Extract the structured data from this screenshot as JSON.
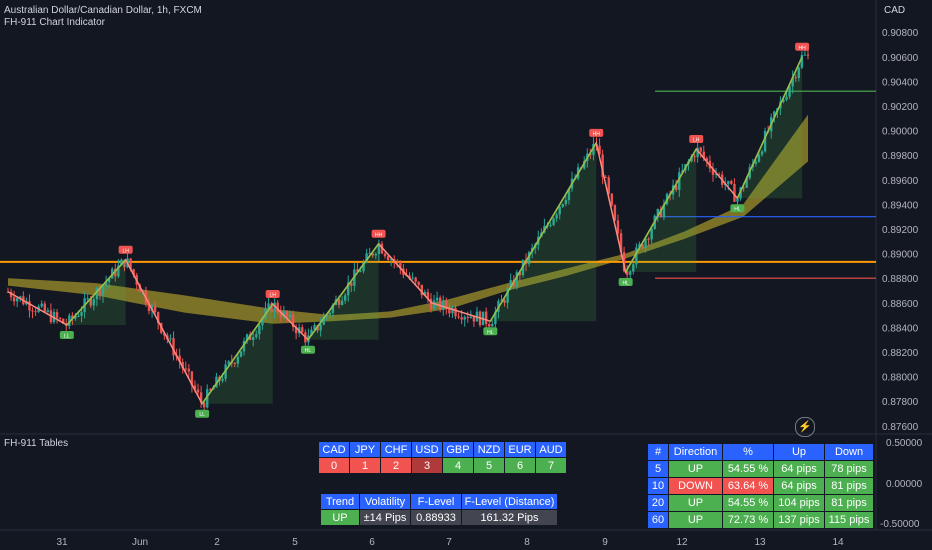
{
  "header": {
    "title": "Australian Dollar/Canadian Dollar, 1h, FXCM",
    "indicator": "FH-911 Chart Indicator",
    "currency": "CAD",
    "pane2": "FH-911 Tables"
  },
  "chart_data": {
    "type": "line",
    "price_axis": {
      "ticks": [
        "0.90800",
        "0.90600",
        "0.90400",
        "0.90200",
        "0.90000",
        "0.89800",
        "0.89600",
        "0.89400",
        "0.89200",
        "0.89000",
        "0.88800",
        "0.88600",
        "0.88400",
        "0.88200",
        "0.88000",
        "0.87800",
        "0.87600"
      ],
      "range": [
        0.8755,
        0.9098
      ]
    },
    "osc_axis": {
      "ticks": [
        "0.50000",
        "0.00000",
        "-0.50000"
      ]
    },
    "x_ticks": [
      "31",
      "Jun",
      "2",
      "5",
      "6",
      "7",
      "8",
      "9",
      "12",
      "13",
      "14"
    ],
    "zigzag": [
      {
        "t": 0.0,
        "p": 0.8869,
        "label": ""
      },
      {
        "t": 1.0,
        "p": 0.8842,
        "label": "LL"
      },
      {
        "t": 2.0,
        "p": 0.8895,
        "label": "LH"
      },
      {
        "t": 3.3,
        "p": 0.8778,
        "label": "LL"
      },
      {
        "t": 4.5,
        "p": 0.8859,
        "label": "LH"
      },
      {
        "t": 5.1,
        "p": 0.883,
        "label": "HL"
      },
      {
        "t": 6.3,
        "p": 0.8908,
        "label": "HH"
      },
      {
        "t": 7.2,
        "p": 0.886,
        "label": ""
      },
      {
        "t": 8.2,
        "p": 0.8845,
        "label": "HL"
      },
      {
        "t": 10.0,
        "p": 0.899,
        "label": "HH"
      },
      {
        "t": 10.5,
        "p": 0.8885,
        "label": "HL"
      },
      {
        "t": 11.7,
        "p": 0.8985,
        "label": "LH"
      },
      {
        "t": 12.4,
        "p": 0.8945,
        "label": "HL"
      },
      {
        "t": 13.5,
        "p": 0.906,
        "label": "HH"
      }
    ],
    "levels": [
      {
        "name": "resistance",
        "value": 0.9032,
        "color": "#4caf50"
      },
      {
        "name": "f-level",
        "value": 0.88933,
        "color": "#ff9800"
      },
      {
        "name": "support-blue",
        "value": 0.893,
        "color": "#2962ff"
      },
      {
        "name": "support-red",
        "value": 0.888,
        "color": "#f05350"
      }
    ],
    "colors": {
      "up": "#26a69a",
      "down": "#ef5350",
      "cloud": "#a99a2a",
      "zig": "#8bc34a"
    }
  },
  "currency_table": {
    "headers": [
      "CAD",
      "JPY",
      "CHF",
      "USD",
      "GBP",
      "NZD",
      "EUR",
      "AUD"
    ],
    "values": [
      "0",
      "1",
      "2",
      "3",
      "4",
      "5",
      "6",
      "7"
    ],
    "colors": [
      "red",
      "red",
      "red",
      "dred",
      "green",
      "green",
      "green",
      "green"
    ]
  },
  "trend_table": {
    "headers": [
      "Trend",
      "Volatility",
      "F-Level",
      "F-Level (Distance)"
    ],
    "values": [
      "UP",
      "±14 Pips",
      "0.88933",
      "161.32 Pips"
    ]
  },
  "stats_table": {
    "headers": [
      "#",
      "Direction",
      "%",
      "Up",
      "Down"
    ],
    "rows": [
      {
        "n": "5",
        "dir": "UP",
        "pct": "54.55 %",
        "up": "64 pips",
        "down": "78 pips",
        "color": "green"
      },
      {
        "n": "10",
        "dir": "DOWN",
        "pct": "63.64 %",
        "up": "64 pips",
        "down": "81 pips",
        "color": "red"
      },
      {
        "n": "20",
        "dir": "UP",
        "pct": "54.55 %",
        "up": "104 pips",
        "down": "81 pips",
        "color": "green"
      },
      {
        "n": "60",
        "dir": "UP",
        "pct": "72.73 %",
        "up": "137 pips",
        "down": "115 pips",
        "color": "green"
      }
    ]
  },
  "icons": {
    "flash": "lightning-icon"
  }
}
